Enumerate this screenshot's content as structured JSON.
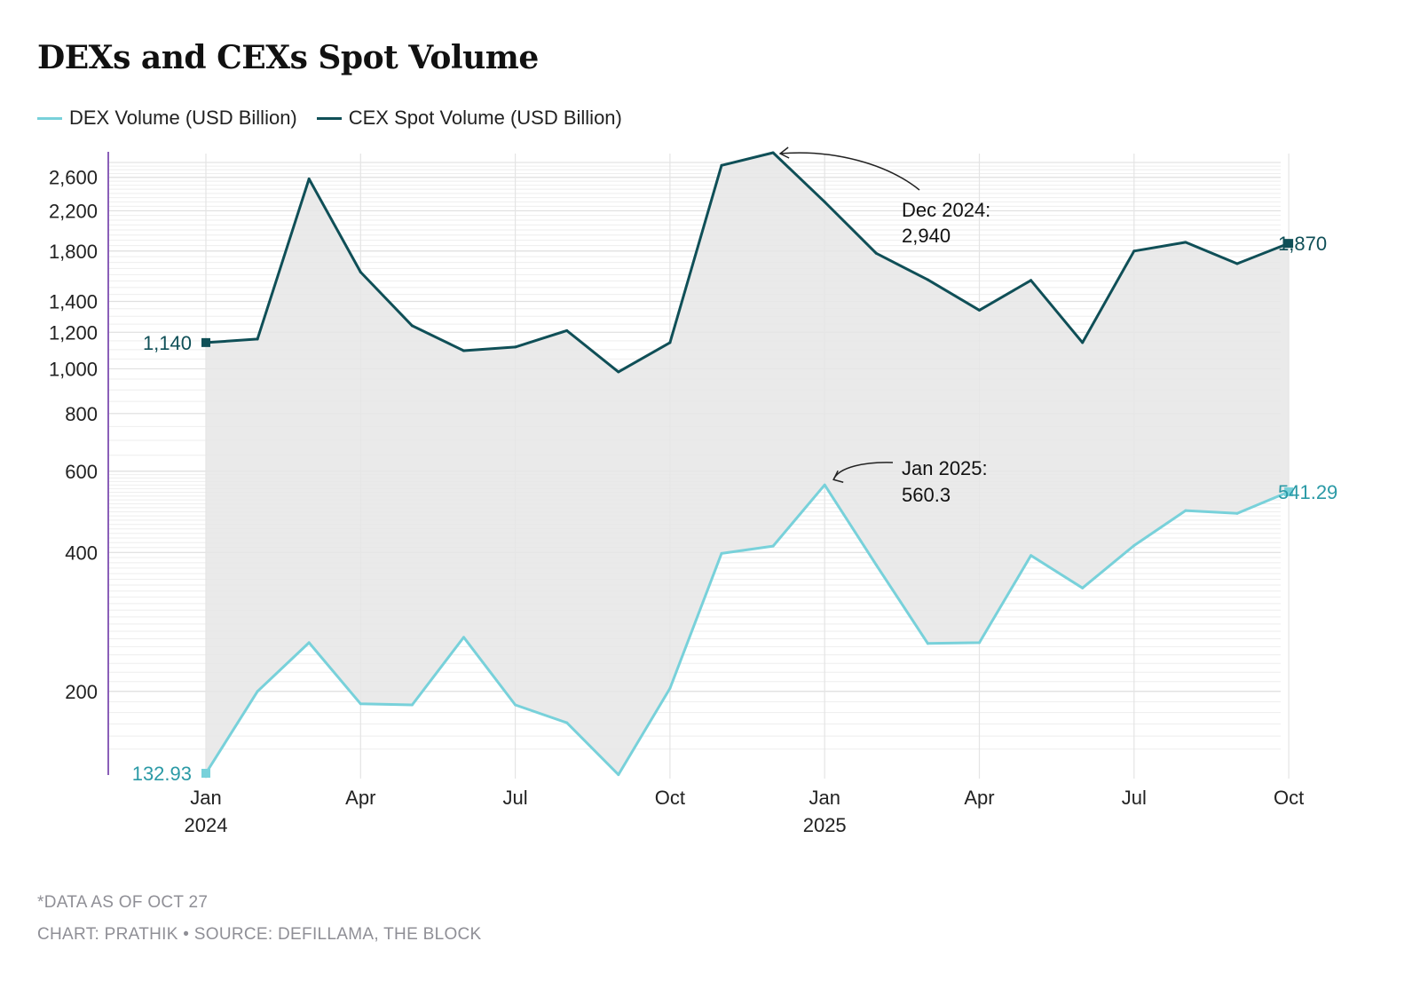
{
  "chart_data": {
    "type": "line",
    "title": "DEXs and CEXs Spot Volume",
    "y_scale": "log",
    "ylim": [
      132.93,
      2940
    ],
    "y_ticks": [
      200,
      400,
      600,
      800,
      1000,
      1200,
      1400,
      1800,
      2200,
      2600
    ],
    "y_tick_labels": [
      "200",
      "400",
      "600",
      "800",
      "1,000",
      "1,200",
      "1,400",
      "1,800",
      "2,200",
      "2,600"
    ],
    "x": [
      "2024-01",
      "2024-02",
      "2024-03",
      "2024-04",
      "2024-05",
      "2024-06",
      "2024-07",
      "2024-08",
      "2024-09",
      "2024-10",
      "2024-11",
      "2024-12",
      "2025-01",
      "2025-02",
      "2025-03",
      "2025-04",
      "2025-05",
      "2025-06",
      "2025-07",
      "2025-08",
      "2025-09",
      "2025-10"
    ],
    "x_ticks": [
      {
        "index": 0,
        "label": "Jan",
        "sublabel": "2024"
      },
      {
        "index": 3,
        "label": "Apr",
        "sublabel": ""
      },
      {
        "index": 6,
        "label": "Jul",
        "sublabel": ""
      },
      {
        "index": 9,
        "label": "Oct",
        "sublabel": ""
      },
      {
        "index": 12,
        "label": "Jan",
        "sublabel": "2025"
      },
      {
        "index": 15,
        "label": "Apr",
        "sublabel": ""
      },
      {
        "index": 18,
        "label": "Jul",
        "sublabel": ""
      },
      {
        "index": 21,
        "label": "Oct",
        "sublabel": ""
      }
    ],
    "series": [
      {
        "name": "DEX Volume (USD Billion)",
        "color": "#78d1da",
        "values": [
          132.93,
          200,
          255,
          188,
          187,
          262,
          187,
          171,
          132,
          203,
          398,
          413,
          560.3,
          376,
          254,
          255,
          394,
          335,
          414,
          493,
          486,
          541.29
        ]
      },
      {
        "name": "CEX Spot Volume (USD Billion)",
        "color": "#0f4f57",
        "values": [
          1140,
          1160,
          2580,
          1620,
          1240,
          1095,
          1115,
          1210,
          985,
          1140,
          2760,
          2940,
          2300,
          1780,
          1560,
          1340,
          1555,
          1140,
          1800,
          1880,
          1690,
          1870
        ]
      }
    ],
    "end_labels": {
      "cex_start": "1,140",
      "cex_end": "1,870",
      "dex_start": "132.93",
      "dex_end": "541.29"
    },
    "annotations": [
      {
        "line1": "Dec 2024:",
        "line2": "2,940"
      },
      {
        "line1": "Jan 2025:",
        "line2": "560.3"
      }
    ]
  },
  "legend": {
    "dex": {
      "label": "DEX Volume (USD Billion)",
      "color": "#78d1da"
    },
    "cex": {
      "label": "CEX Spot Volume (USD Billion)",
      "color": "#0f4f57"
    }
  },
  "footer": {
    "note": "*DATA AS OF OCT 27",
    "credit": "CHART: PRATHIK • SOURCE: DEFILLAMA, THE BLOCK"
  }
}
